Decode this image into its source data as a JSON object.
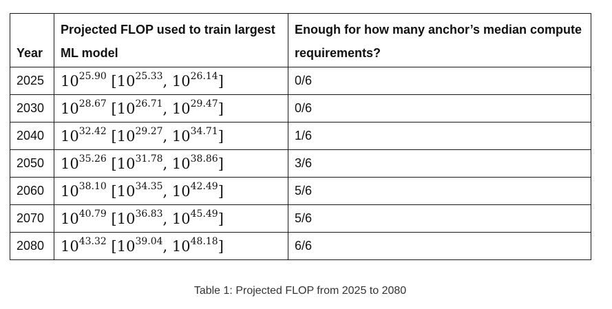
{
  "table": {
    "headers": {
      "year": "Year",
      "flop": "Projected FLOP used to train largest ML model",
      "anchors": "Enough for how many anchor’s median compute requirements?"
    },
    "rows": [
      {
        "year": "2025",
        "base": "10",
        "median": "25.90",
        "low": "25.33",
        "high": "26.14",
        "anchors": "0/6"
      },
      {
        "year": "2030",
        "base": "10",
        "median": "28.67",
        "low": "26.71",
        "high": "29.47",
        "anchors": "0/6"
      },
      {
        "year": "2040",
        "base": "10",
        "median": "32.42",
        "low": "29.27",
        "high": "34.71",
        "anchors": "1/6"
      },
      {
        "year": "2050",
        "base": "10",
        "median": "35.26",
        "low": "31.78",
        "high": "38.86",
        "anchors": "3/6"
      },
      {
        "year": "2060",
        "base": "10",
        "median": "38.10",
        "low": "34.35",
        "high": "42.49",
        "anchors": "5/6"
      },
      {
        "year": "2070",
        "base": "10",
        "median": "40.79",
        "low": "36.83",
        "high": "45.49",
        "anchors": "5/6"
      },
      {
        "year": "2080",
        "base": "10",
        "median": "43.32",
        "low": "39.04",
        "high": "48.18",
        "anchors": "6/6"
      }
    ]
  },
  "caption": "Table 1: Projected FLOP from 2025 to 2080"
}
